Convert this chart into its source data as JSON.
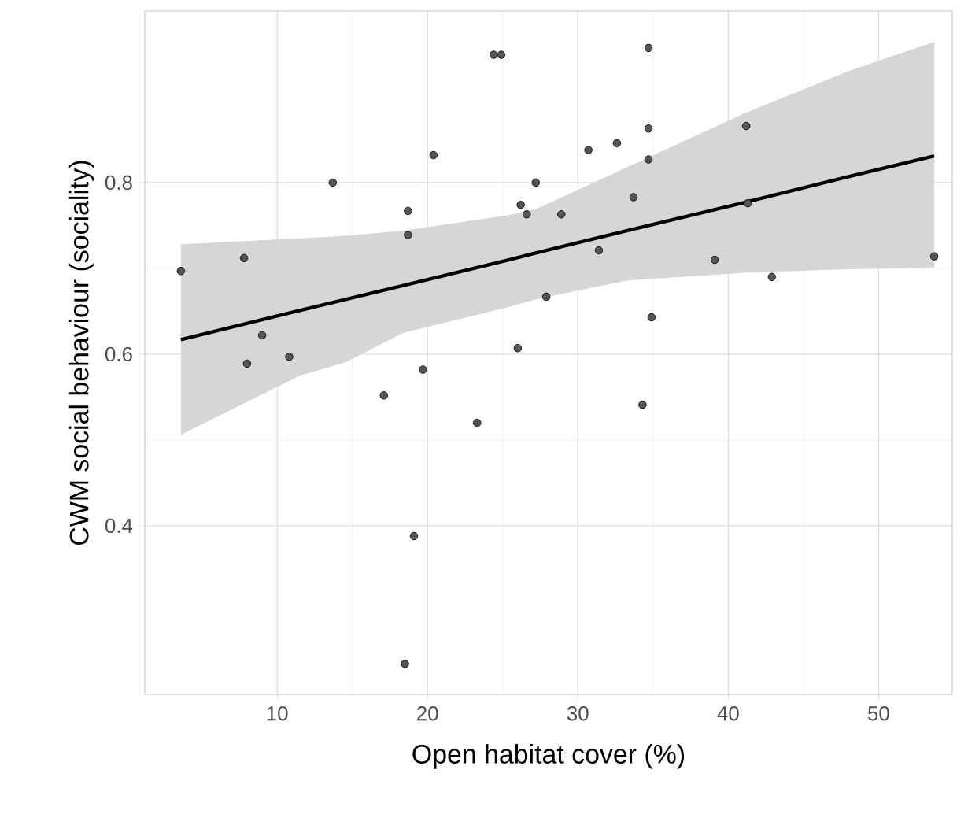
{
  "chart_data": {
    "type": "scatter",
    "xlabel": "Open habitat cover (%)",
    "ylabel": "CWM social behaviour (sociality)",
    "xlim": [
      1.2,
      54.9
    ],
    "ylim": [
      0.2035,
      1.0
    ],
    "xticks": [
      10,
      20,
      30,
      40,
      50
    ],
    "yticks": [
      0.4,
      0.6,
      0.8
    ],
    "grid": true,
    "series": [
      {
        "marker": "circle",
        "color": "#555555",
        "x": [
          3.6,
          7.8,
          9.0,
          8.0,
          10.8,
          13.7,
          18.7,
          18.7,
          20.4,
          19.7,
          17.1,
          24.4,
          24.9,
          26.2,
          26.6,
          27.2,
          27.9,
          26.0,
          23.3,
          19.1,
          18.5,
          28.9,
          30.7,
          32.6,
          34.7,
          34.7,
          34.7,
          33.7,
          31.4,
          34.9,
          41.2,
          41.3,
          39.1,
          42.9,
          53.7,
          34.3
        ],
        "values": [
          0.697,
          0.712,
          0.622,
          0.589,
          0.597,
          0.8,
          0.767,
          0.739,
          0.832,
          0.582,
          0.552,
          0.949,
          0.949,
          0.774,
          0.763,
          0.8,
          0.667,
          0.607,
          0.52,
          0.388,
          0.239,
          0.763,
          0.838,
          0.846,
          0.957,
          0.863,
          0.827,
          0.783,
          0.721,
          0.643,
          0.866,
          0.776,
          0.71,
          0.69,
          0.714,
          0.541
        ]
      },
      {
        "type": "line",
        "color": "#000000",
        "x": [
          3.6,
          11.5,
          14.6,
          18.4,
          25.4,
          27.2,
          33.3,
          41.1,
          48.0,
          53.7
        ],
        "values": [
          0.617,
          0.651,
          0.664,
          0.68,
          0.71,
          0.718,
          0.744,
          0.777,
          0.807,
          0.831
        ],
        "lower": [
          0.506,
          0.575,
          0.591,
          0.625,
          0.655,
          0.664,
          0.686,
          0.695,
          0.699,
          0.701
        ],
        "upper": [
          0.728,
          0.735,
          0.738,
          0.744,
          0.762,
          0.769,
          0.818,
          0.881,
          0.93,
          0.964
        ]
      }
    ]
  }
}
